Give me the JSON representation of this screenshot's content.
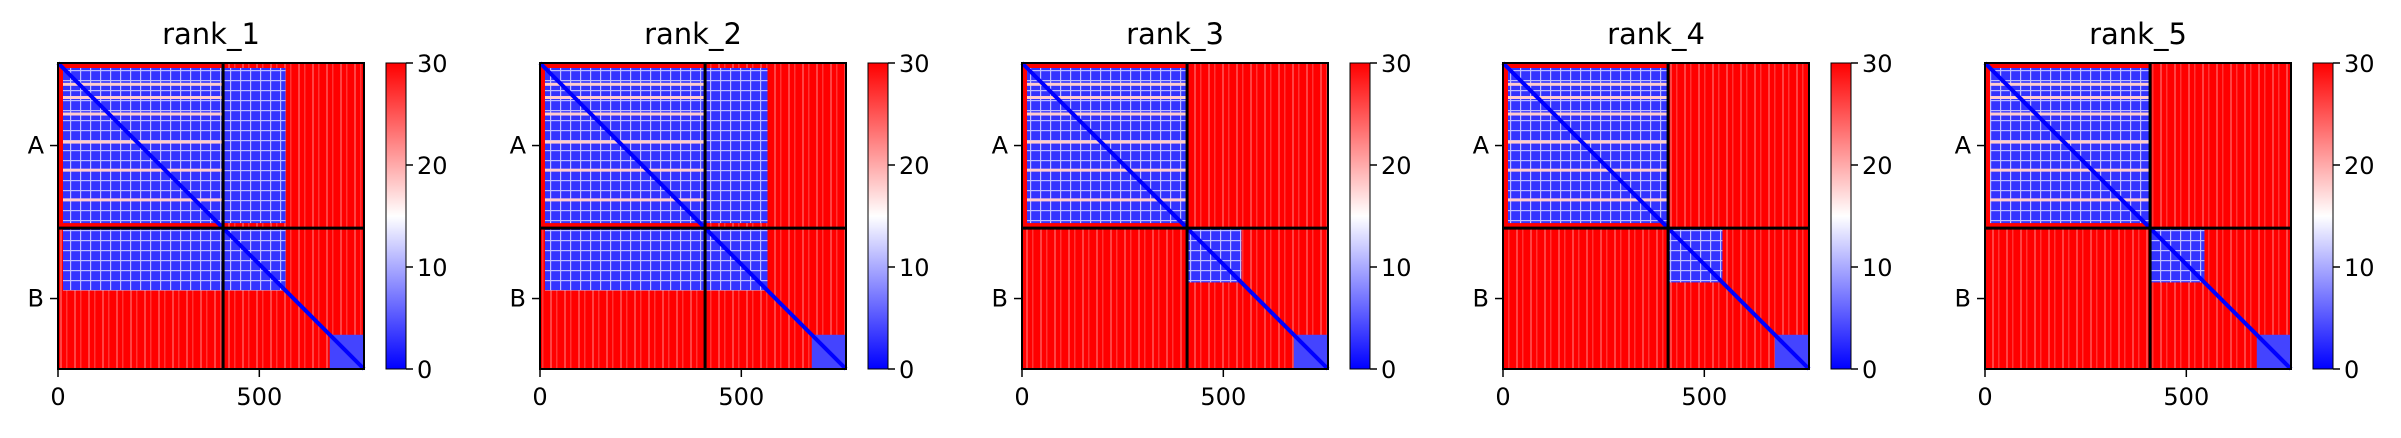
{
  "figure": {
    "type": "heatmap",
    "colorscale": {
      "low": "#0000ff",
      "mid": "#ffffff",
      "high": "#ff0000"
    },
    "frame_color": "#000000",
    "divider_color": "#000000"
  },
  "chart_data": [
    {
      "type": "heatmap",
      "title": "rank_1",
      "xlim": [
        0,
        760
      ],
      "xticks": [
        0,
        500
      ],
      "chain_boundary": 410,
      "chain_labels": [
        "A",
        "B"
      ],
      "colorbar": {
        "min": 0,
        "max": 30,
        "ticks": [
          0,
          10,
          20,
          30
        ]
      },
      "interchain_low_error": true,
      "chainB_subblock_end": 565
    },
    {
      "type": "heatmap",
      "title": "rank_2",
      "xlim": [
        0,
        760
      ],
      "xticks": [
        0,
        500
      ],
      "chain_boundary": 410,
      "chain_labels": [
        "A",
        "B"
      ],
      "colorbar": {
        "min": 0,
        "max": 30,
        "ticks": [
          0,
          10,
          20,
          30
        ]
      },
      "interchain_low_error": true,
      "chainB_subblock_end": 565
    },
    {
      "type": "heatmap",
      "title": "rank_3",
      "xlim": [
        0,
        760
      ],
      "xticks": [
        0,
        500
      ],
      "chain_boundary": 410,
      "chain_labels": [
        "A",
        "B"
      ],
      "colorbar": {
        "min": 0,
        "max": 30,
        "ticks": [
          0,
          10,
          20,
          30
        ]
      },
      "interchain_low_error": false,
      "chainB_subblock_end": 545
    },
    {
      "type": "heatmap",
      "title": "rank_4",
      "xlim": [
        0,
        760
      ],
      "xticks": [
        0,
        500
      ],
      "chain_boundary": 410,
      "chain_labels": [
        "A",
        "B"
      ],
      "colorbar": {
        "min": 0,
        "max": 30,
        "ticks": [
          0,
          10,
          20,
          30
        ]
      },
      "interchain_low_error": false,
      "chainB_subblock_end": 545
    },
    {
      "type": "heatmap",
      "title": "rank_5",
      "xlim": [
        0,
        760
      ],
      "xticks": [
        0,
        500
      ],
      "chain_boundary": 410,
      "chain_labels": [
        "A",
        "B"
      ],
      "colorbar": {
        "min": 0,
        "max": 30,
        "ticks": [
          0,
          10,
          20,
          30
        ]
      },
      "interchain_low_error": false,
      "chainB_subblock_end": 545
    }
  ]
}
